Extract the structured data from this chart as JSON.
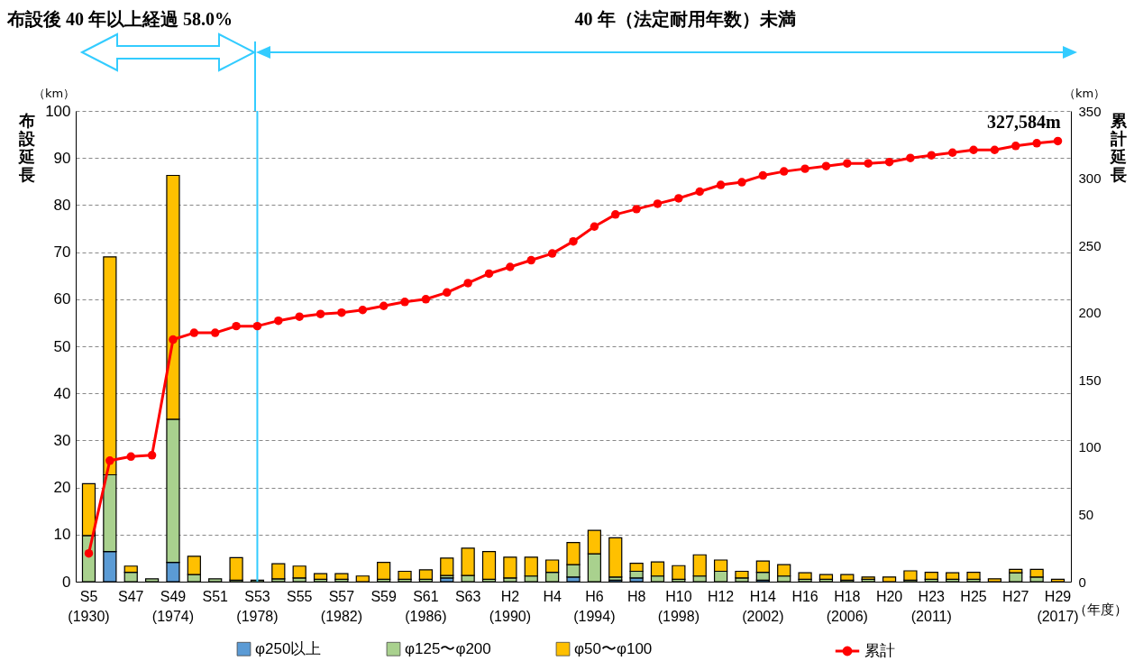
{
  "chart_data": {
    "type": "bar",
    "stacked": true,
    "legend": "bottom",
    "grid": "y",
    "marker": "circle",
    "xlabel": "（年度）",
    "ylabel": "布設延長",
    "y2label": "累計延長",
    "categories": [
      "S5\n(1930)",
      null,
      "S47",
      null,
      "S49\n(1974)",
      null,
      "S51",
      null,
      "S53\n(1978)",
      null,
      "S55",
      null,
      "S57\n(1982)",
      null,
      "S59",
      null,
      "S61\n(1986)",
      null,
      "S63",
      null,
      "H2\n(1990)",
      null,
      "H4",
      null,
      "H6\n(1994)",
      null,
      "H8",
      null,
      "H10\n(1998)",
      null,
      "H12",
      null,
      "H14\n(2002)",
      null,
      "H16",
      null,
      "H18\n(2006)",
      null,
      "H20",
      null,
      "H23\n(2011)",
      null,
      "H25",
      null,
      "H27",
      null,
      "H29\n(2017)"
    ],
    "ylim": [
      0,
      100
    ],
    "yticks": [
      0,
      10,
      20,
      30,
      40,
      50,
      60,
      70,
      80,
      90,
      100
    ],
    "y2lim": [
      0,
      350
    ],
    "y2ticks": [
      0,
      50,
      100,
      150,
      200,
      250,
      300,
      350
    ],
    "series": [
      {
        "name": "φ250以上",
        "color": "#5b9bd5",
        "values": [
          null,
          6.4,
          null,
          null,
          4.1,
          null,
          null,
          null,
          null,
          null,
          null,
          null,
          null,
          null,
          null,
          null,
          null,
          0.8,
          null,
          null,
          null,
          null,
          null,
          1.0,
          null,
          0.3,
          0.8,
          null,
          null,
          null,
          null,
          null,
          0.3,
          null,
          null,
          null,
          null,
          null,
          null,
          null,
          null,
          null,
          null,
          null,
          null,
          null,
          null
        ]
      },
      {
        "name": "φ125〜φ200",
        "color": "#a9d18e",
        "values": [
          9.8,
          16.3,
          2.0,
          0.6,
          30.4,
          1.5,
          0.6,
          0.3,
          0.3,
          0.6,
          0.8,
          0.5,
          0.5,
          null,
          0.5,
          0.5,
          0.5,
          0.5,
          1.3,
          0.5,
          0.8,
          1.2,
          2.0,
          2.6,
          5.9,
          0.7,
          1.4,
          1.2,
          0.5,
          1.2,
          2.2,
          0.8,
          1.7,
          1.2,
          0.5,
          0.5,
          0.3,
          0.5,
          null,
          0.3,
          0.5,
          0.5,
          0.5,
          null,
          1.9,
          1.0,
          null
        ]
      },
      {
        "name": "φ50〜φ100",
        "color": "#ffc000",
        "values": [
          11,
          46.3,
          1.3,
          null,
          51.8,
          3.9,
          null,
          4.8,
          null,
          3.2,
          2.5,
          1.2,
          1.2,
          1.2,
          3.6,
          1.7,
          2.0,
          3.7,
          5.8,
          5.9,
          4.4,
          4.0,
          2.6,
          4.7,
          5.0,
          8.3,
          1.7,
          3.0,
          2.9,
          4.5,
          2.4,
          1.4,
          2.4,
          2.4,
          1.4,
          1.0,
          1.2,
          0.5,
          1.0,
          2.0,
          1.5,
          1.4,
          1.5,
          0.6,
          0.7,
          1.6,
          0.5
        ]
      },
      {
        "name": "累計",
        "type": "line",
        "axis": "y2",
        "color": "#ff0000",
        "values": [
          21,
          90,
          93,
          94,
          180,
          185,
          185,
          190,
          190,
          194,
          197,
          199,
          200,
          202,
          205,
          208,
          210,
          215,
          222,
          229,
          234,
          239,
          244,
          253,
          264,
          273,
          277,
          281,
          285,
          290,
          295,
          297,
          302,
          305,
          307,
          309,
          311,
          311,
          312,
          315,
          317,
          319,
          321,
          321,
          324,
          326,
          327.6
        ]
      }
    ],
    "ref_lines": [
      {
        "axis": "x",
        "value": "S53\n(1978)",
        "color": "#33ccff"
      }
    ],
    "annotations": [
      "布設後 40 年以上経過 58.0%",
      "40 年（法定耐用年数）未満",
      "（km）",
      "（km）",
      "327,584m"
    ]
  }
}
